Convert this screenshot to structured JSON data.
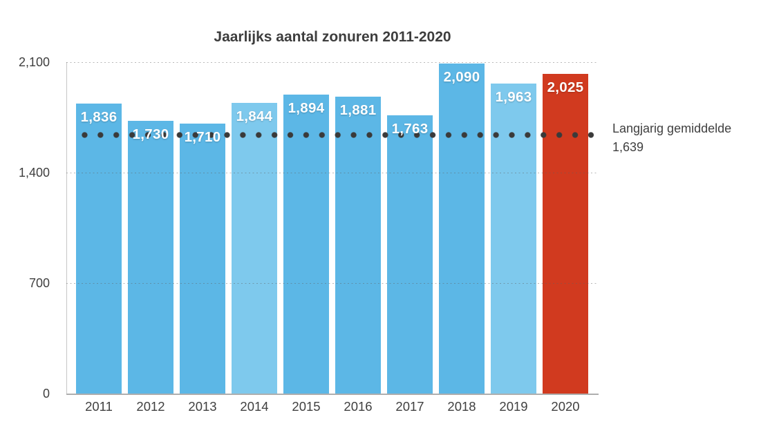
{
  "chart_data": {
    "type": "bar",
    "title": "Jaarlijks aantal zonuren 2011-2020",
    "categories": [
      "2011",
      "2012",
      "2013",
      "2014",
      "2015",
      "2016",
      "2017",
      "2018",
      "2019",
      "2020"
    ],
    "values": [
      1836,
      1730,
      1710,
      1844,
      1894,
      1881,
      1763,
      2090,
      1963,
      2025
    ],
    "value_labels": [
      "1,836",
      "1,730",
      "1,710",
      "1,844",
      "1,894",
      "1,881",
      "1,763",
      "2,090",
      "1,963",
      "2,025"
    ],
    "bar_colors": [
      "#5cb7e6",
      "#5cb7e6",
      "#5cb7e6",
      "#7ec9ed",
      "#5cb7e6",
      "#5cb7e6",
      "#5cb7e6",
      "#5cb7e6",
      "#7ec9ed",
      "#d13a1f"
    ],
    "xlabel": "",
    "ylabel": "",
    "ylim": [
      0,
      2100
    ],
    "y_ticks": [
      {
        "value": 0,
        "label": "0"
      },
      {
        "value": 700,
        "label": "700"
      },
      {
        "value": 1400,
        "label": "1,400"
      },
      {
        "value": 2100,
        "label": "2,100"
      }
    ],
    "grid": "horizontal-dotted",
    "legend_position": "none",
    "average_line": {
      "value": 1639,
      "label": "Langjarig gemiddelde",
      "value_label": "1,639",
      "style": "dotted",
      "color": "#3a3a3a"
    },
    "colors": {
      "bar_default": "#5cb7e6",
      "bar_light": "#7ec9ed",
      "bar_highlight": "#d13a1f",
      "text": "#3f3f3f",
      "grid": "#b5b5b5"
    }
  }
}
